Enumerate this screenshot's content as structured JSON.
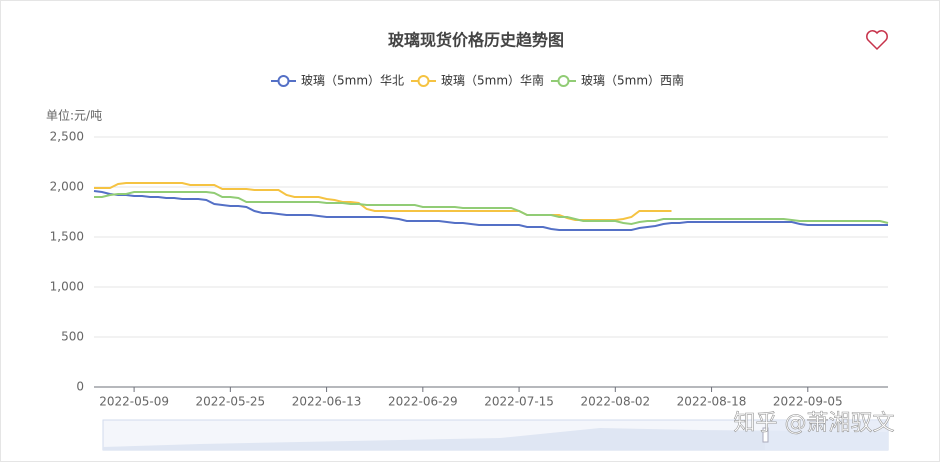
{
  "chart_data": {
    "type": "line",
    "title": "玻璃现货价格历史趋势图",
    "y_label": "单位:元/吨",
    "watermark": "知乎 @萧湘驭文",
    "categories": [
      null,
      null,
      null,
      null,
      null,
      "2022-05-09",
      null,
      null,
      null,
      null,
      null,
      null,
      null,
      null,
      null,
      null,
      null,
      "2022-05-25",
      null,
      null,
      null,
      null,
      null,
      null,
      null,
      null,
      null,
      null,
      null,
      "2022-06-13",
      null,
      null,
      null,
      null,
      null,
      null,
      null,
      null,
      null,
      null,
      null,
      "2022-06-29",
      null,
      null,
      null,
      null,
      null,
      null,
      null,
      null,
      null,
      null,
      null,
      "2022-07-15",
      null,
      null,
      null,
      null,
      null,
      null,
      null,
      null,
      null,
      null,
      null,
      "2022-08-02",
      null,
      null,
      null,
      null,
      null,
      null,
      null,
      null,
      null,
      null,
      null,
      "2022-08-18",
      null,
      null,
      null,
      null,
      null,
      null,
      null,
      null,
      null,
      null,
      null,
      "2022-09-05",
      null,
      null,
      null,
      null,
      null,
      null,
      null,
      null,
      null,
      null
    ],
    "series": [
      {
        "name": "玻璃（5mm）华北",
        "color": "#5470c6",
        "values": [
          1960,
          1950,
          1930,
          1920,
          1920,
          1910,
          1910,
          1900,
          1900,
          1890,
          1890,
          1880,
          1880,
          1880,
          1870,
          1830,
          1820,
          1810,
          1810,
          1800,
          1760,
          1740,
          1740,
          1730,
          1720,
          1720,
          1720,
          1720,
          1710,
          1700,
          1700,
          1700,
          1700,
          1700,
          1700,
          1700,
          1700,
          1690,
          1680,
          1660,
          1660,
          1660,
          1660,
          1660,
          1650,
          1640,
          1640,
          1630,
          1620,
          1620,
          1620,
          1620,
          1620,
          1620,
          1600,
          1600,
          1600,
          1580,
          1570,
          1570,
          1570,
          1570,
          1570,
          1570,
          1570,
          1570,
          1570,
          1570,
          1590,
          1600,
          1610,
          1630,
          1640,
          1640,
          1650,
          1650,
          1650,
          1650,
          1650,
          1650,
          1650,
          1650,
          1650,
          1650,
          1650,
          1650,
          1650,
          1650,
          1630,
          1620,
          1620,
          1620,
          1620,
          1620,
          1620,
          1620,
          1620,
          1620,
          1620,
          1620
        ]
      },
      {
        "name": "玻璃（5mm）华南",
        "color": "#f5c342",
        "values": [
          1990,
          1990,
          1990,
          2030,
          2040,
          2040,
          2040,
          2040,
          2040,
          2040,
          2040,
          2040,
          2020,
          2020,
          2020,
          2020,
          1980,
          1980,
          1980,
          1980,
          1970,
          1970,
          1970,
          1970,
          1920,
          1900,
          1900,
          1900,
          1900,
          1880,
          1870,
          1850,
          1850,
          1840,
          1780,
          1760,
          1760,
          1760,
          1760,
          1760,
          1760,
          1760,
          1760,
          1760,
          1760,
          1760,
          1760,
          1760,
          1760,
          1760,
          1760,
          1760,
          1760,
          1760,
          1720,
          1720,
          1720,
          1720,
          1720,
          1690,
          1670,
          1670,
          1670,
          1670,
          1670,
          1670,
          1680,
          1700,
          1760,
          1760,
          1760,
          1760,
          1760,
          null,
          null,
          null,
          null,
          null,
          null,
          null,
          null,
          null,
          null,
          null,
          null,
          null,
          null,
          null,
          null,
          null,
          null,
          null,
          null,
          null,
          null,
          null,
          null,
          null,
          null,
          null
        ]
      },
      {
        "name": "玻璃（5mm）西南",
        "color": "#91cc75",
        "values": [
          1900,
          1900,
          1920,
          1930,
          1930,
          1950,
          1950,
          1950,
          1950,
          1950,
          1950,
          1950,
          1950,
          1950,
          1950,
          1940,
          1900,
          1900,
          1890,
          1850,
          1850,
          1850,
          1850,
          1850,
          1850,
          1850,
          1850,
          1850,
          1850,
          1840,
          1840,
          1840,
          1830,
          1830,
          1820,
          1820,
          1820,
          1820,
          1820,
          1820,
          1820,
          1800,
          1800,
          1800,
          1800,
          1800,
          1790,
          1790,
          1790,
          1790,
          1790,
          1790,
          1790,
          1760,
          1720,
          1720,
          1720,
          1720,
          1700,
          1700,
          1680,
          1660,
          1660,
          1660,
          1660,
          1660,
          1640,
          1630,
          1650,
          1660,
          1660,
          1680,
          1680,
          1680,
          1680,
          1680,
          1680,
          1680,
          1680,
          1680,
          1680,
          1680,
          1680,
          1680,
          1680,
          1680,
          1680,
          1670,
          1660,
          1660,
          1660,
          1660,
          1660,
          1660,
          1660,
          1660,
          1660,
          1660,
          1660,
          1640
        ]
      }
    ],
    "ylim": [
      0,
      2500
    ],
    "yticks": [
      0,
      500,
      {
        "value": 1000,
        "label": "1,000"
      },
      {
        "value": 1500,
        "label": "1,500"
      },
      {
        "value": 2000,
        "label": "2,000"
      },
      {
        "value": 2500,
        "label": "2,500"
      }
    ],
    "grid": true
  }
}
